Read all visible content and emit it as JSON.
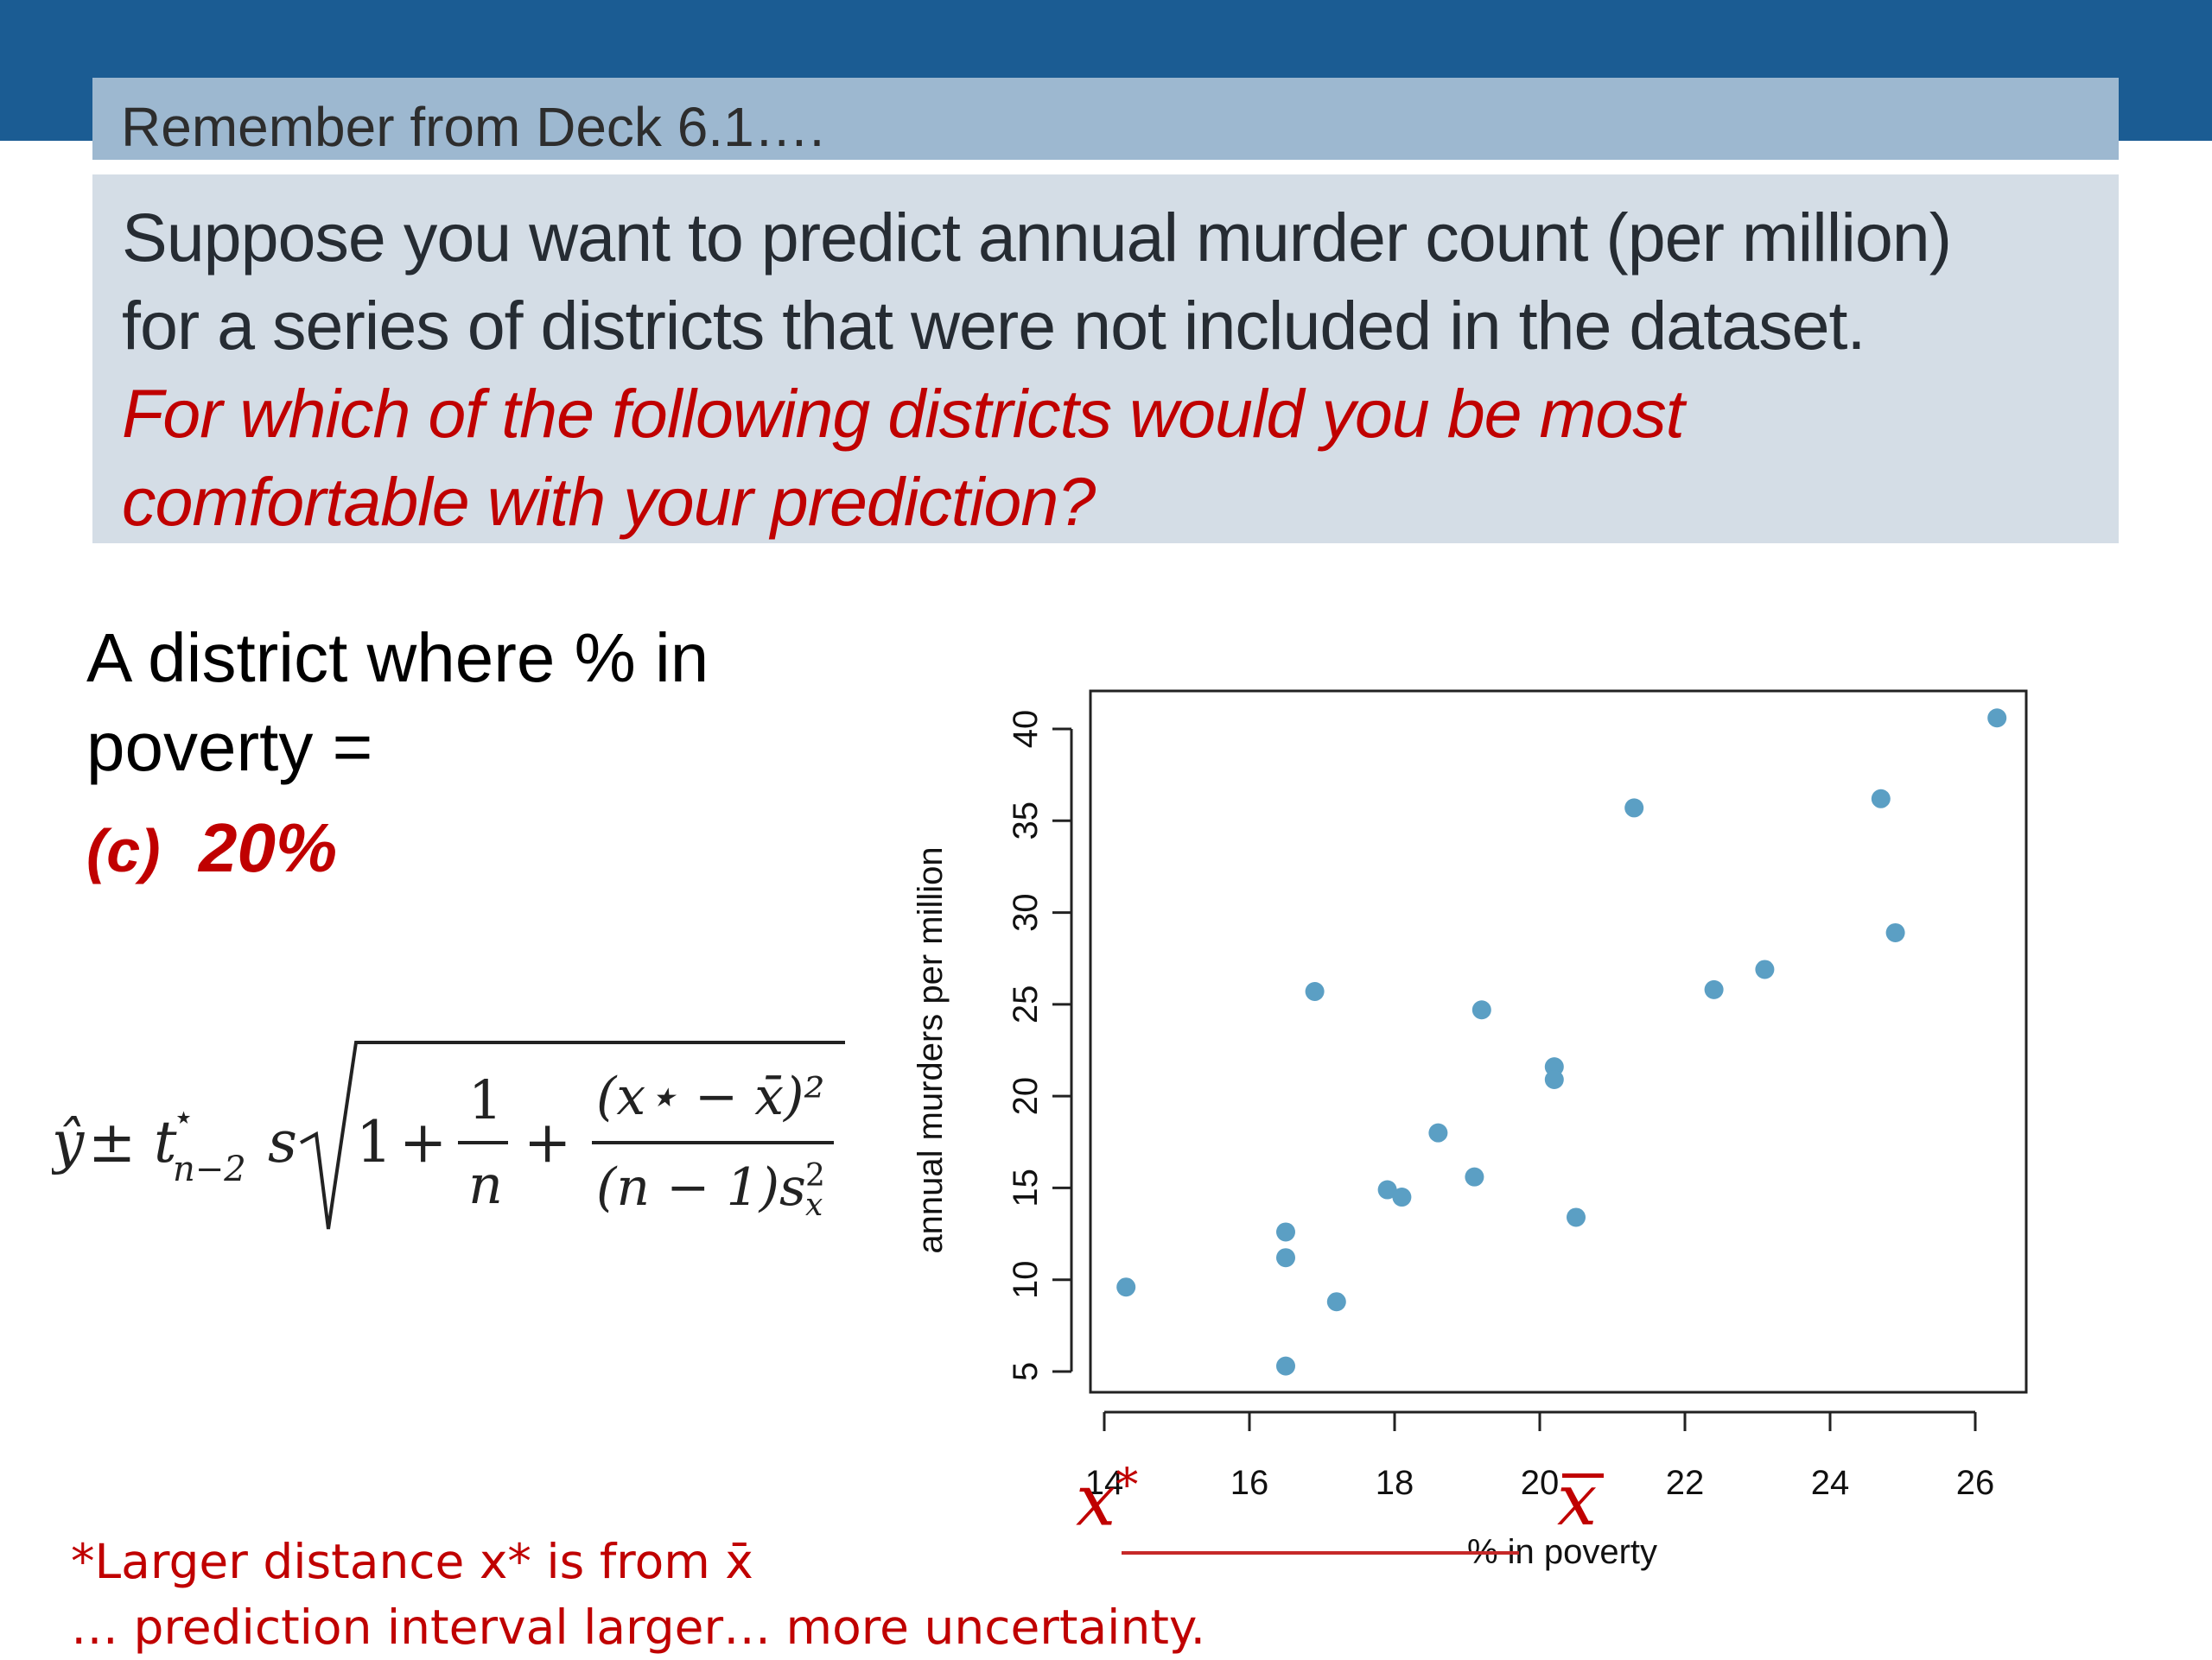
{
  "header": {
    "subtitle": "Remember from Deck 6.1…."
  },
  "question": {
    "line1": "Suppose you want to predict annual murder count (per million)",
    "line2": "for a series of districts that were not included in the  dataset.",
    "line3": "For which of the following districts would you be most",
    "line4": "comfortable with your prediction?"
  },
  "district": {
    "line1": "A district where % in",
    "line2": "poverty =",
    "answer_letter": "(c)",
    "answer_value": "20%"
  },
  "formula": {
    "yhat": "ŷ",
    "pm": "±",
    "t": "t",
    "t_sup": "⋆",
    "t_sub": "n−2",
    "s": "s",
    "one": "1",
    "plus1": "+",
    "frac1_num": "1",
    "frac1_den": "n",
    "plus2": "+",
    "frac2_num": "(x⋆ − x̄)²",
    "frac2_den": "(n − 1)s",
    "frac2_den_sup": "2",
    "frac2_den_sub": "x"
  },
  "annotations": {
    "x_star": "x",
    "x_star_sup": "*",
    "x_bar": "x"
  },
  "footnote": {
    "line1": "*Larger distance x* is from x̄",
    "line2": "… prediction interval larger… more uncertainty."
  },
  "chart_data": {
    "type": "scatter",
    "xlabel": "% in poverty",
    "ylabel": "annual murders per million",
    "xlim": [
      14,
      26
    ],
    "ylim": [
      5,
      40
    ],
    "xticks": [
      14,
      16,
      18,
      20,
      22,
      24,
      26
    ],
    "yticks": [
      5,
      10,
      15,
      20,
      25,
      30,
      35,
      40
    ],
    "point_color": "#5b9fc4",
    "points": [
      {
        "x": 14.3,
        "y": 9.6
      },
      {
        "x": 16.5,
        "y": 12.6
      },
      {
        "x": 16.5,
        "y": 11.2
      },
      {
        "x": 16.5,
        "y": 5.3
      },
      {
        "x": 16.9,
        "y": 25.7
      },
      {
        "x": 17.2,
        "y": 8.8
      },
      {
        "x": 17.9,
        "y": 14.9
      },
      {
        "x": 18.1,
        "y": 14.5
      },
      {
        "x": 18.6,
        "y": 18.0
      },
      {
        "x": 19.1,
        "y": 15.6
      },
      {
        "x": 19.2,
        "y": 24.7
      },
      {
        "x": 20.2,
        "y": 21.6
      },
      {
        "x": 20.2,
        "y": 20.9
      },
      {
        "x": 20.5,
        "y": 13.4
      },
      {
        "x": 21.3,
        "y": 35.7
      },
      {
        "x": 22.4,
        "y": 25.8
      },
      {
        "x": 23.1,
        "y": 26.9
      },
      {
        "x": 24.7,
        "y": 36.2
      },
      {
        "x": 24.9,
        "y": 28.9
      },
      {
        "x": 26.3,
        "y": 40.6
      }
    ]
  }
}
